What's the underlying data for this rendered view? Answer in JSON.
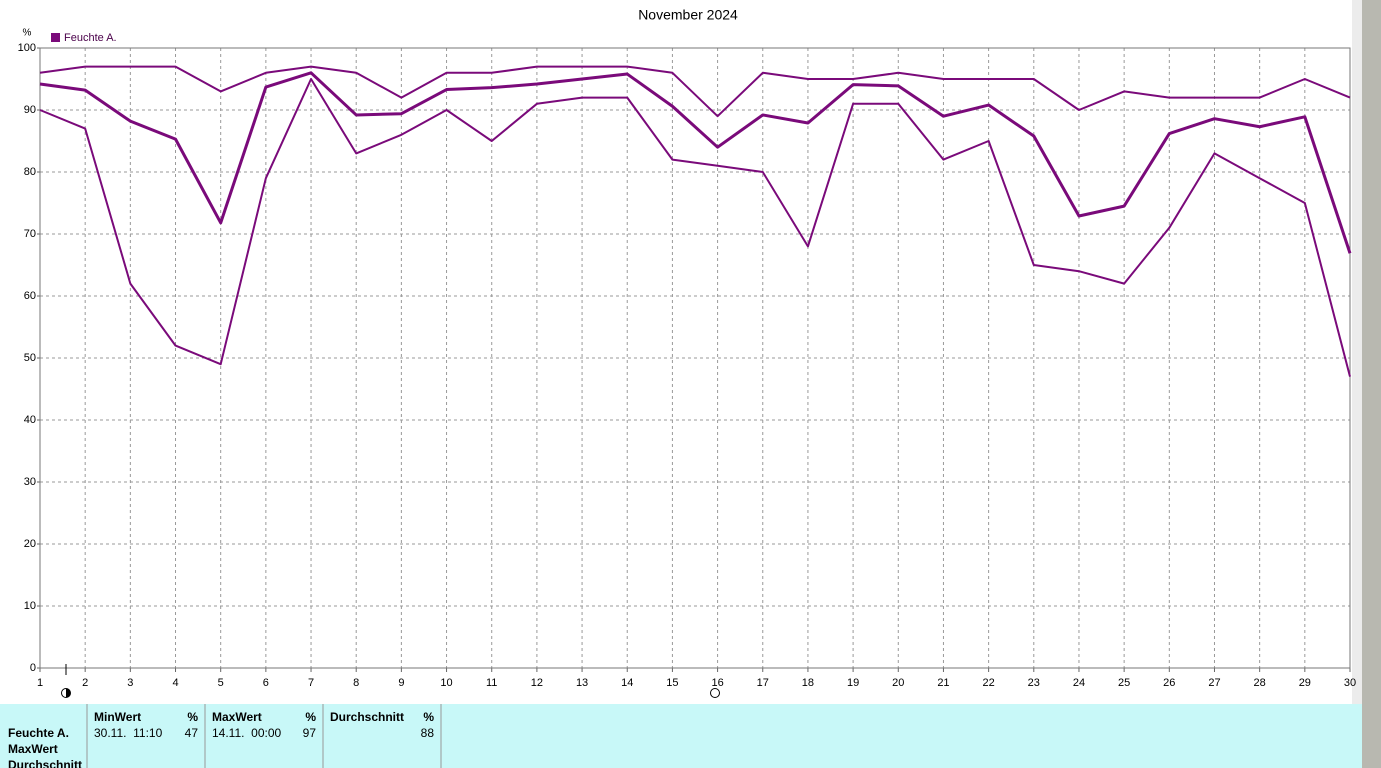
{
  "chart_data": {
    "type": "line",
    "title": "November 2024",
    "y_label": "%",
    "x": [
      1,
      2,
      3,
      4,
      5,
      6,
      7,
      8,
      9,
      10,
      11,
      12,
      13,
      14,
      15,
      16,
      17,
      18,
      19,
      20,
      21,
      22,
      23,
      24,
      25,
      26,
      27,
      28,
      29,
      30
    ],
    "xlim": [
      1,
      30
    ],
    "xticks": [
      1,
      2,
      3,
      4,
      5,
      6,
      7,
      8,
      9,
      10,
      11,
      12,
      13,
      14,
      15,
      16,
      17,
      18,
      19,
      20,
      21,
      22,
      23,
      24,
      25,
      26,
      27,
      28,
      29,
      30
    ],
    "ylim": [
      0,
      100
    ],
    "yticks": [
      0,
      10,
      20,
      30,
      40,
      50,
      60,
      70,
      80,
      90,
      100
    ],
    "grid": true,
    "legend": "top-left",
    "series": [
      {
        "name": "Feuchte A.",
        "color": "#7a0a7a",
        "width": 3,
        "values": [
          94.2,
          93.2,
          88.2,
          85.3,
          71.8,
          93.7,
          96,
          89.2,
          89.4,
          93.3,
          93.6,
          94.2,
          95,
          95.8,
          90.6,
          84,
          89.2,
          87.9,
          94.1,
          93.9,
          89,
          90.8,
          85.8,
          72.9,
          74.5,
          86.2,
          88.6,
          87.3,
          88.9,
          66.9
        ]
      },
      {
        "color": "#7a0a7a",
        "width": 2,
        "values": [
          96,
          97,
          97,
          97,
          93,
          96,
          97,
          96,
          92,
          96,
          96,
          97,
          97,
          97,
          96,
          89,
          96,
          95,
          95,
          96,
          95,
          95,
          95,
          90,
          93,
          92,
          92,
          92,
          95,
          92
        ]
      },
      {
        "color": "#7a0a7a",
        "width": 2,
        "values": [
          90,
          87,
          62,
          52,
          49,
          79,
          95,
          83,
          86,
          90,
          85,
          91,
          92,
          92,
          82,
          81,
          80,
          68,
          91,
          91,
          82,
          85,
          65,
          64,
          62,
          71,
          83,
          79,
          75,
          47
        ]
      }
    ]
  },
  "table": {
    "row_labels": [
      "Feuchte A.",
      "MaxWert",
      "Durchschnitt"
    ],
    "columns": [
      {
        "header": "MinWert",
        "unit": "%",
        "time": "30.11.  11:10",
        "value": 47
      },
      {
        "header": "MaxWert",
        "unit": "%",
        "time": "14.11.  00:00",
        "value": 97
      },
      {
        "header": "Durchschnitt",
        "unit": "%",
        "value": 88
      }
    ]
  }
}
